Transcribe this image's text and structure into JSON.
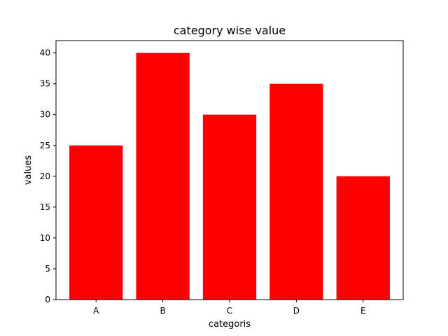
{
  "chart_data": {
    "type": "bar",
    "title": "category wise value",
    "xlabel": "categoris",
    "ylabel": "values",
    "categories": [
      "A",
      "B",
      "C",
      "D",
      "E"
    ],
    "values": [
      25,
      40,
      30,
      35,
      20
    ],
    "ylim": [
      0,
      42
    ],
    "yticks": [
      0,
      5,
      10,
      15,
      20,
      25,
      30,
      35,
      40
    ],
    "bar_color": "#ff0000",
    "grid": false,
    "legend": "none"
  }
}
